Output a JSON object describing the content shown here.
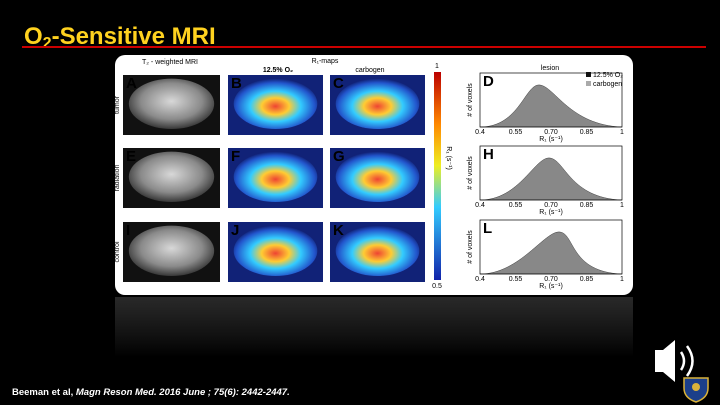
{
  "header": {
    "title_main": "O",
    "title_sub": "2",
    "title_rest": "-Sensitive MRI"
  },
  "figure": {
    "col_t2": "T₂ - weighted MRI",
    "col_r1": "R₁-maps",
    "col_o2": "12.5% O₂",
    "col_carbogen": "carbogen",
    "col_lesion": "lesion",
    "row_labels": [
      "tumor",
      "radiation",
      "control"
    ],
    "panel_letters": [
      [
        "A",
        "B",
        "C",
        "D"
      ],
      [
        "E",
        "F",
        "G",
        "H"
      ],
      [
        "I",
        "J",
        "K",
        "L"
      ]
    ],
    "colorbar": {
      "max": "1",
      "min": "0.5",
      "label": "R₁ (s⁻¹)"
    },
    "hist": {
      "ylabel": "# of voxels",
      "xlabel": "R₁ (s⁻¹)",
      "xticks": [
        "0.4",
        "0.55",
        "0.70",
        "0.85",
        "1"
      ],
      "legend": [
        "12.5% O₂",
        "carbogen"
      ]
    }
  },
  "citation": {
    "authors": "Beeman et al, ",
    "journal": "Magn Reson Med. 2016 June ; 75(6): 2442-2447."
  }
}
